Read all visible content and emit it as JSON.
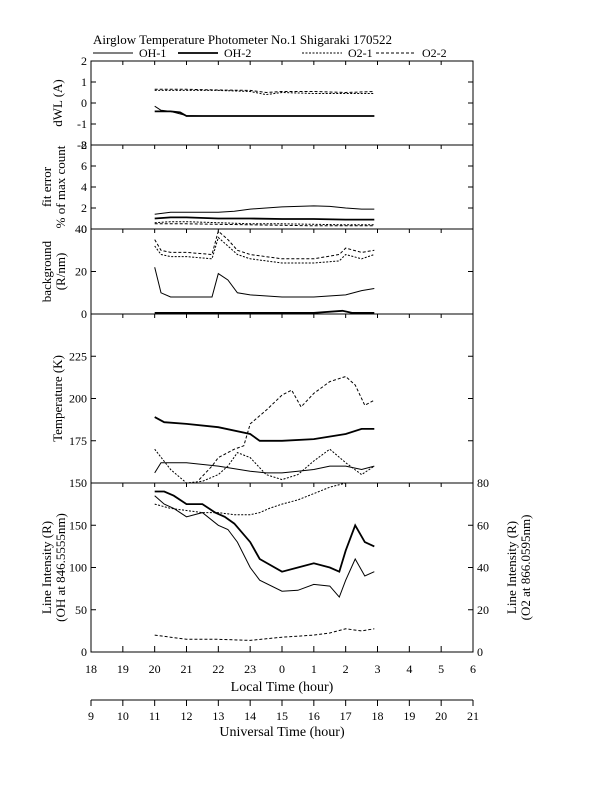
{
  "title": "Airglow Temperature Photometer No.1  Shigaraki   170522",
  "legend": {
    "oh1": "OH-1",
    "oh2": "OH-2",
    "o21": "O2-1",
    "o22": "O2-2"
  },
  "xaxis_local": {
    "label": "Local Time (hour)",
    "ticks": [
      "18",
      "19",
      "20",
      "21",
      "22",
      "23",
      "0",
      "1",
      "2",
      "3",
      "4",
      "5",
      "6"
    ]
  },
  "xaxis_ut": {
    "label": "Universal Time (hour)",
    "ticks": [
      "9",
      "10",
      "11",
      "12",
      "13",
      "14",
      "15",
      "16",
      "17",
      "18",
      "19",
      "20",
      "21"
    ]
  },
  "chart_data": [
    {
      "type": "line",
      "panel": "dwl",
      "ylabel": "dWL (A)",
      "ylim": [
        -2,
        2
      ],
      "ticks": [
        "2",
        "1",
        "0",
        "-1",
        "-2"
      ],
      "x_unit": "UT hour",
      "series": [
        {
          "name": "OH-1",
          "x": [
            11.0,
            11.2,
            11.5,
            12.0,
            12.5,
            13,
            14,
            15,
            16,
            17,
            17.9
          ],
          "y": [
            -0.15,
            -0.35,
            -0.4,
            -0.6,
            -0.62,
            -0.62,
            -0.62,
            -0.62,
            -0.62,
            -0.62,
            -0.62
          ]
        },
        {
          "name": "OH-2",
          "x": [
            11.0,
            11.5,
            11.8,
            12.0,
            13,
            14,
            15,
            16,
            17,
            17.9
          ],
          "y": [
            -0.4,
            -0.4,
            -0.45,
            -0.62,
            -0.62,
            -0.62,
            -0.62,
            -0.62,
            -0.62,
            -0.62
          ]
        },
        {
          "name": "O2-1",
          "x": [
            11.0,
            12,
            13,
            14,
            14.5,
            15,
            16,
            17,
            17.9
          ],
          "y": [
            0.6,
            0.6,
            0.6,
            0.55,
            0.4,
            0.5,
            0.45,
            0.45,
            0.45
          ]
        },
        {
          "name": "O2-2",
          "x": [
            11.0,
            12,
            13,
            14,
            14.5,
            15,
            16,
            17,
            17.9
          ],
          "y": [
            0.65,
            0.65,
            0.62,
            0.6,
            0.5,
            0.55,
            0.55,
            0.5,
            0.55
          ]
        }
      ]
    },
    {
      "type": "line",
      "panel": "fit_error",
      "ylabel": "fit error",
      "ylabel2": "% of max count",
      "ylim": [
        0,
        8
      ],
      "ticks": [
        "8",
        "6",
        "4",
        "2",
        "0"
      ],
      "series": [
        {
          "name": "OH-1",
          "x": [
            11.0,
            11.5,
            12,
            13,
            13.5,
            14,
            14.5,
            15,
            15.5,
            16,
            16.5,
            17,
            17.5,
            17.9
          ],
          "y": [
            1.4,
            1.6,
            1.6,
            1.6,
            1.7,
            1.9,
            2.0,
            2.1,
            2.15,
            2.2,
            2.15,
            2.0,
            1.9,
            1.9
          ]
        },
        {
          "name": "OH-2",
          "x": [
            11.0,
            11.5,
            12,
            13,
            14,
            15,
            16,
            17,
            17.9
          ],
          "y": [
            1.0,
            1.1,
            1.1,
            1.0,
            1.0,
            0.95,
            0.95,
            0.9,
            0.9
          ]
        },
        {
          "name": "O2-1",
          "x": [
            11.0,
            11.5,
            12,
            13,
            14,
            15,
            16,
            17,
            17.9
          ],
          "y": [
            0.6,
            0.7,
            0.7,
            0.6,
            0.5,
            0.5,
            0.45,
            0.4,
            0.4
          ]
        },
        {
          "name": "O2-2",
          "x": [
            11.0,
            11.5,
            12,
            13,
            14,
            15,
            16,
            17,
            17.9
          ],
          "y": [
            0.5,
            0.5,
            0.5,
            0.45,
            0.4,
            0.35,
            0.3,
            0.3,
            0.3
          ]
        }
      ]
    },
    {
      "type": "line",
      "panel": "background",
      "ylabel": "background",
      "ylabel2": "(R/nm)",
      "ylim": [
        0,
        40
      ],
      "ticks": [
        "40",
        "20",
        "0"
      ],
      "series": [
        {
          "name": "OH-1",
          "x": [
            11.0,
            11.2,
            11.5,
            12,
            12.8,
            13.0,
            13.3,
            13.6,
            14,
            15,
            16,
            17,
            17.5,
            17.9
          ],
          "y": [
            22,
            10,
            8,
            8,
            8,
            19,
            16,
            10,
            9,
            8,
            8,
            9,
            11,
            12
          ]
        },
        {
          "name": "OH-2",
          "x": [
            11.0,
            12,
            13,
            14,
            15,
            16,
            16.9,
            17.2,
            17.9
          ],
          "y": [
            0.5,
            0.5,
            0.5,
            0.5,
            0.5,
            0.5,
            1.5,
            0.5,
            0.5
          ]
        },
        {
          "name": "O2-1",
          "x": [
            11.0,
            11.2,
            11.5,
            12,
            12.8,
            13.0,
            13.3,
            13.6,
            14,
            15,
            16,
            16.8,
            17.0,
            17.5,
            17.9
          ],
          "y": [
            32,
            28,
            27,
            27,
            26,
            36,
            32,
            28,
            26,
            24,
            24,
            25,
            28,
            26,
            28
          ]
        },
        {
          "name": "O2-2",
          "x": [
            11.0,
            11.2,
            11.5,
            12,
            12.8,
            13.0,
            13.3,
            13.6,
            14,
            15,
            16,
            16.8,
            17.0,
            17.5,
            17.9
          ],
          "y": [
            35,
            30,
            29,
            29,
            28,
            39,
            35,
            30,
            28,
            26,
            26,
            28,
            31,
            29,
            30
          ]
        }
      ]
    },
    {
      "type": "line",
      "panel": "temperature",
      "ylabel": "Temperature (K)",
      "ylim": [
        150,
        250
      ],
      "ticks": [
        "225",
        "200",
        "175",
        "150"
      ],
      "series": [
        {
          "name": "OH-1",
          "x": [
            11.0,
            11.2,
            12,
            13,
            14,
            14.5,
            15,
            15.5,
            16,
            16.5,
            17,
            17.5,
            17.9
          ],
          "y": [
            156,
            162,
            162,
            160,
            157,
            156,
            156,
            157,
            158,
            160,
            160,
            158,
            160
          ]
        },
        {
          "name": "OH-2",
          "x": [
            11.0,
            11.3,
            12,
            13,
            14,
            14.3,
            15,
            16,
            17,
            17.5,
            17.9
          ],
          "y": [
            189,
            186,
            185,
            183,
            179,
            175,
            175,
            176,
            179,
            182,
            182
          ]
        },
        {
          "name": "O2-1",
          "x": [
            11.0,
            11.5,
            12,
            12.5,
            13,
            13.3,
            13.6,
            14,
            14.5,
            15,
            15.5,
            16,
            16.5,
            17,
            17.5,
            17.9
          ],
          "y": [
            170,
            158,
            150,
            151,
            155,
            160,
            168,
            165,
            155,
            152,
            155,
            163,
            170,
            162,
            155,
            160
          ]
        },
        {
          "name": "O2-2",
          "x": [
            12.4,
            12.8,
            13,
            13.5,
            13.8,
            14,
            14.5,
            15,
            15.3,
            15.6,
            16,
            16.5,
            17,
            17.3,
            17.6,
            17.9
          ],
          "y": [
            152,
            160,
            165,
            170,
            172,
            185,
            193,
            202,
            205,
            195,
            203,
            210,
            213,
            208,
            196,
            199
          ]
        }
      ]
    },
    {
      "type": "line",
      "panel": "intensity",
      "ylabel": "Line Intensity (R)",
      "ylabel2": "(OH at 846.5555nm)",
      "ylabel_right": "Line Intensity (R)",
      "ylabel_right2": "(O2 at 866.0595nm)",
      "ylim": [
        0,
        200
      ],
      "ylim_right": [
        0,
        80
      ],
      "ticks": [
        "150",
        "100",
        "50",
        "0"
      ],
      "ticks_right": [
        "80",
        "60",
        "40",
        "20",
        "0"
      ],
      "series": [
        {
          "name": "OH-1",
          "x": [
            11.0,
            11.3,
            11.6,
            12,
            12.5,
            13,
            13.3,
            13.6,
            14,
            14.3,
            15,
            15.5,
            16,
            16.5,
            16.8,
            17,
            17.3,
            17.6,
            17.9
          ],
          "y": [
            185,
            175,
            170,
            160,
            165,
            150,
            145,
            130,
            100,
            85,
            72,
            73,
            80,
            78,
            65,
            85,
            110,
            90,
            95
          ]
        },
        {
          "name": "OH-2",
          "x": [
            11.0,
            11.3,
            11.6,
            12,
            12.5,
            12.9,
            13.2,
            13.5,
            14,
            14.3,
            15,
            15.5,
            16,
            16.5,
            16.8,
            17,
            17.3,
            17.6,
            17.9
          ],
          "y": [
            190,
            190,
            185,
            175,
            175,
            165,
            160,
            152,
            130,
            110,
            95,
            100,
            105,
            100,
            95,
            120,
            150,
            130,
            125
          ]
        },
        {
          "name": "O2-1",
          "x": [
            11.0,
            11.5,
            12,
            12.5,
            13,
            13.5,
            14,
            14.3,
            14.6,
            15,
            15.5,
            16,
            16.5,
            17,
            17.5,
            17.9
          ],
          "y": [
            70,
            68,
            67,
            66,
            66,
            65,
            65,
            66,
            68,
            70,
            72,
            75,
            78,
            80,
            80,
            80
          ]
        },
        {
          "name": "O2-2",
          "x": [
            11.0,
            11.5,
            12,
            13,
            14,
            15,
            16,
            16.5,
            17,
            17.5,
            17.9
          ],
          "y": [
            8,
            7,
            6,
            6,
            5.5,
            7,
            8,
            9,
            11,
            10,
            11
          ]
        }
      ]
    }
  ]
}
